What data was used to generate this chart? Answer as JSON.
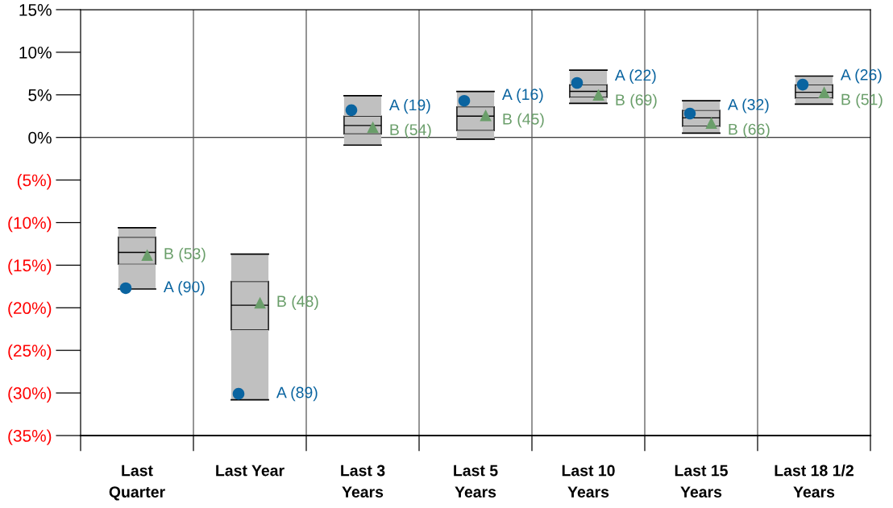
{
  "chart_data": {
    "type": "box",
    "categories": [
      "Last\nQuarter",
      "Last Year",
      "Last 3\nYears",
      "Last 5\nYears",
      "Last 10\nYears",
      "Last 15\nYears",
      "Last 18 1/2\nYears"
    ],
    "boxes": [
      {
        "low": -17.8,
        "q1": -14.9,
        "median": -13.5,
        "q3": -11.7,
        "high": -10.6
      },
      {
        "low": -30.8,
        "q1": -22.6,
        "median": -19.7,
        "q3": -16.9,
        "high": -13.7
      },
      {
        "low": -0.9,
        "q1": 0.4,
        "median": 1.4,
        "q3": 2.5,
        "high": 4.9
      },
      {
        "low": -0.2,
        "q1": 0.8,
        "median": 2.5,
        "q3": 3.6,
        "high": 5.4
      },
      {
        "low": 4.0,
        "q1": 4.7,
        "median": 5.4,
        "q3": 6.2,
        "high": 7.9
      },
      {
        "low": 0.5,
        "q1": 1.3,
        "median": 2.3,
        "q3": 3.2,
        "high": 4.3
      },
      {
        "low": 3.9,
        "q1": 4.6,
        "median": 5.3,
        "q3": 6.2,
        "high": 7.2
      }
    ],
    "series": [
      {
        "type": "scatter",
        "marker": "circle",
        "color": "#0a64a0",
        "x": [
          "Last\nQuarter",
          "Last Year",
          "Last 3\nYears",
          "Last 5\nYears",
          "Last 10\nYears",
          "Last 15\nYears",
          "Last 18 1/2\nYears"
        ],
        "values": [
          -17.7,
          -30.1,
          3.2,
          4.3,
          6.4,
          2.8,
          6.2
        ]
      },
      {
        "type": "scatter",
        "marker": "triangle",
        "color": "#6a9e6a",
        "x": [
          "Last\nQuarter",
          "Last Year",
          "Last 3\nYears",
          "Last 5\nYears",
          "Last 10\nYears",
          "Last 15\nYears",
          "Last 18 1/2\nYears"
        ],
        "values": [
          -13.8,
          -19.4,
          1.2,
          2.6,
          5.0,
          1.7,
          5.3
        ]
      }
    ],
    "annotations": [
      {
        "text": "A (90)",
        "x": "Last\nQuarter",
        "y": -17.7
      },
      {
        "text": "B (53)",
        "x": "Last\nQuarter",
        "y": -13.8
      },
      {
        "text": "A (89)",
        "x": "Last Year",
        "y": -30.1
      },
      {
        "text": "B (48)",
        "x": "Last Year",
        "y": -19.4
      },
      {
        "text": "A (19)",
        "x": "Last 3\nYears",
        "y": 3.2
      },
      {
        "text": "B (54)",
        "x": "Last 3\nYears",
        "y": 1.2
      },
      {
        "text": "A (16)",
        "x": "Last 5\nYears",
        "y": 4.3
      },
      {
        "text": "B (45)",
        "x": "Last 5\nYears",
        "y": 2.6
      },
      {
        "text": "A (22)",
        "x": "Last 10\nYears",
        "y": 6.4
      },
      {
        "text": "B (69)",
        "x": "Last 10\nYears",
        "y": 5.0
      },
      {
        "text": "A (32)",
        "x": "Last 15\nYears",
        "y": 2.8
      },
      {
        "text": "B (66)",
        "x": "Last 15\nYears",
        "y": 1.7
      },
      {
        "text": "A (26)",
        "x": "Last 18 1/2\nYears",
        "y": 6.2
      },
      {
        "text": "B (51)",
        "x": "Last 18 1/2\nYears",
        "y": 5.3
      }
    ],
    "ylim": [
      -35,
      15
    ],
    "yticks": [
      {
        "value": -35,
        "label": "(35%)"
      },
      {
        "value": -30,
        "label": "(30%)"
      },
      {
        "value": -25,
        "label": "(25%)"
      },
      {
        "value": -20,
        "label": "(20%)"
      },
      {
        "value": -15,
        "label": "(15%)"
      },
      {
        "value": -10,
        "label": "(10%)"
      },
      {
        "value": -5,
        "label": "(5%)"
      },
      {
        "value": 0,
        "label": "0%"
      },
      {
        "value": 5,
        "label": "5%"
      },
      {
        "value": 10,
        "label": "10%"
      },
      {
        "value": 15,
        "label": "15%"
      }
    ],
    "ref_lines": [
      {
        "axis": "y",
        "value": 0,
        "color": "#000000"
      }
    ],
    "grid": "x"
  }
}
